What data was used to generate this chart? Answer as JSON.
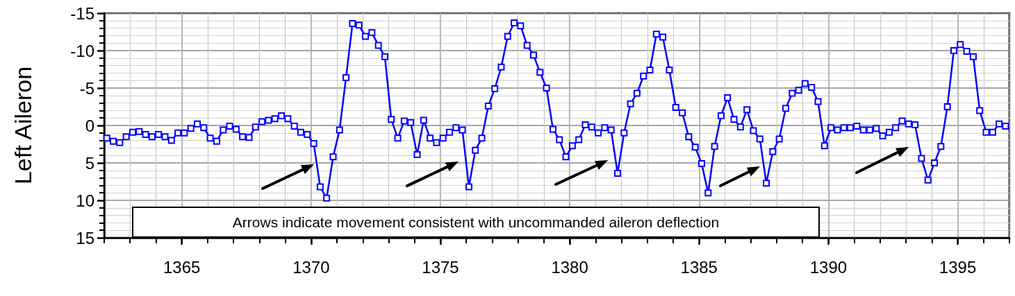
{
  "chart_data": {
    "type": "line",
    "ylabel": "Left Aileron",
    "annotations": [
      "Arrows indicate movement consistent with uncommanded aileron deflection"
    ],
    "xlim": [
      1362,
      1397
    ],
    "xticks": [
      1365,
      1370,
      1375,
      1380,
      1385,
      1390,
      1395
    ],
    "ylim": [
      15,
      -15
    ],
    "yticks": [
      -15,
      -10,
      -5,
      0,
      5,
      10,
      15
    ],
    "grid": true,
    "marker": "square",
    "line_style": "solid",
    "series": [
      {
        "color": "#0000ff",
        "x": [
          1362.1,
          1362.35,
          1362.6,
          1362.85,
          1363.1,
          1363.35,
          1363.6,
          1363.85,
          1364.1,
          1364.35,
          1364.6,
          1364.85,
          1365.1,
          1365.35,
          1365.6,
          1365.85,
          1366.1,
          1366.35,
          1366.6,
          1366.85,
          1367.1,
          1367.35,
          1367.6,
          1367.85,
          1368.1,
          1368.35,
          1368.6,
          1368.85,
          1369.1,
          1369.35,
          1369.6,
          1369.85,
          1370.1,
          1370.35,
          1370.6,
          1370.85,
          1371.1,
          1371.35,
          1371.6,
          1371.85,
          1372.1,
          1372.35,
          1372.6,
          1372.85,
          1373.1,
          1373.35,
          1373.6,
          1373.85,
          1374.1,
          1374.35,
          1374.6,
          1374.85,
          1375.1,
          1375.35,
          1375.6,
          1375.85,
          1376.1,
          1376.35,
          1376.6,
          1376.85,
          1377.1,
          1377.35,
          1377.6,
          1377.85,
          1378.1,
          1378.35,
          1378.6,
          1378.85,
          1379.1,
          1379.35,
          1379.6,
          1379.85,
          1380.1,
          1380.35,
          1380.6,
          1380.85,
          1381.1,
          1381.35,
          1381.6,
          1381.85,
          1382.1,
          1382.35,
          1382.6,
          1382.85,
          1383.1,
          1383.35,
          1383.6,
          1383.85,
          1384.1,
          1384.35,
          1384.6,
          1384.85,
          1385.1,
          1385.35,
          1385.6,
          1385.85,
          1386.1,
          1386.35,
          1386.6,
          1386.85,
          1387.1,
          1387.35,
          1387.6,
          1387.85,
          1388.1,
          1388.35,
          1388.6,
          1388.85,
          1389.1,
          1389.35,
          1389.6,
          1389.85,
          1390.1,
          1390.35,
          1390.6,
          1390.85,
          1391.1,
          1391.35,
          1391.6,
          1391.85,
          1392.1,
          1392.35,
          1392.6,
          1392.85,
          1393.1,
          1393.35,
          1393.6,
          1393.85,
          1394.1,
          1394.35,
          1394.6,
          1394.85,
          1395.1,
          1395.35,
          1395.6,
          1395.85,
          1396.1,
          1396.35,
          1396.6,
          1396.85
        ],
        "values": [
          1.7,
          2.1,
          2.3,
          1.5,
          0.9,
          0.8,
          1.2,
          1.5,
          1.2,
          1.5,
          2.0,
          1.0,
          1.0,
          0.4,
          -0.2,
          0.3,
          1.7,
          2.1,
          0.6,
          0.1,
          0.5,
          1.5,
          1.6,
          0.2,
          -0.5,
          -0.7,
          -0.9,
          -1.3,
          -0.9,
          0.1,
          0.9,
          1.2,
          2.4,
          8.2,
          9.7,
          4.2,
          0.6,
          -6.4,
          -13.6,
          -13.4,
          -11.9,
          -12.4,
          -10.7,
          -9.2,
          -0.8,
          1.7,
          -0.6,
          -0.4,
          3.9,
          -0.7,
          1.7,
          2.3,
          1.7,
          0.9,
          0.3,
          0.6,
          8.2,
          3.3,
          1.7,
          -2.6,
          -4.9,
          -7.8,
          -11.9,
          -13.7,
          -13.3,
          -10.7,
          -9.4,
          -7.1,
          -5.0,
          0.5,
          1.9,
          4.2,
          2.7,
          1.9,
          -0.1,
          0.2,
          1.0,
          0.3,
          0.6,
          6.4,
          1.0,
          -2.9,
          -4.3,
          -6.6,
          -7.4,
          -12.2,
          -11.8,
          -7.4,
          -2.4,
          -1.7,
          1.5,
          2.9,
          5.1,
          9.0,
          2.8,
          -1.3,
          -3.7,
          -0.8,
          0.2,
          -2.1,
          0.7,
          1.8,
          7.7,
          3.5,
          1.8,
          -2.3,
          -4.3,
          -4.7,
          -5.6,
          -5.1,
          -3.2,
          2.7,
          0.3,
          0.6,
          0.3,
          0.3,
          0.1,
          0.6,
          0.6,
          0.4,
          1.4,
          0.9,
          0.3,
          -0.6,
          -0.2,
          -0.1,
          4.4,
          7.3,
          5.0,
          2.8,
          -2.5,
          -10.0,
          -10.8,
          -9.9,
          -9.2,
          -2.0,
          0.9,
          0.9,
          -0.2,
          0.1
        ]
      }
    ]
  }
}
